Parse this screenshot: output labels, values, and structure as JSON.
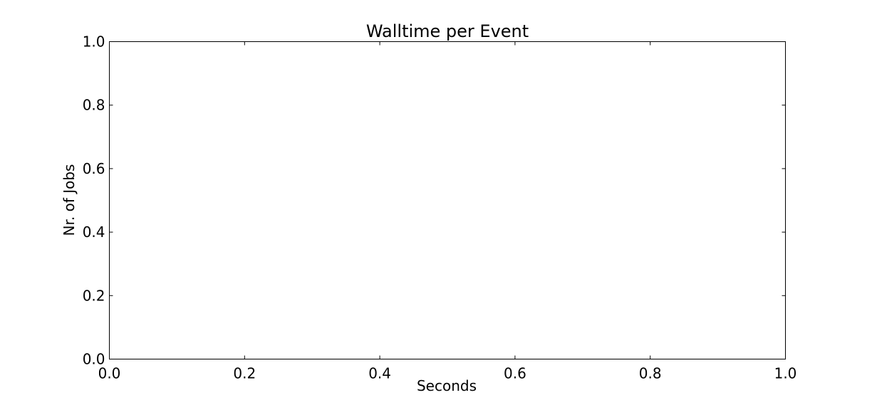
{
  "chart_data": {
    "type": "bar",
    "title": "Walltime per Event",
    "xlabel": "Seconds",
    "ylabel": "Nr. of Jobs",
    "xlim": [
      0.0,
      1.0
    ],
    "ylim": [
      0.0,
      1.0
    ],
    "x_ticks": [
      0.0,
      0.2,
      0.4,
      0.6,
      0.8,
      1.0
    ],
    "y_ticks": [
      0.0,
      0.2,
      0.4,
      0.6,
      0.8,
      1.0
    ],
    "x_tick_labels": [
      "0.0",
      "0.2",
      "0.4",
      "0.6",
      "0.8",
      "1.0"
    ],
    "y_tick_labels": [
      "0.0",
      "0.2",
      "0.4",
      "0.6",
      "0.8",
      "1.0"
    ],
    "series": [],
    "grid": false,
    "legend": "none"
  }
}
